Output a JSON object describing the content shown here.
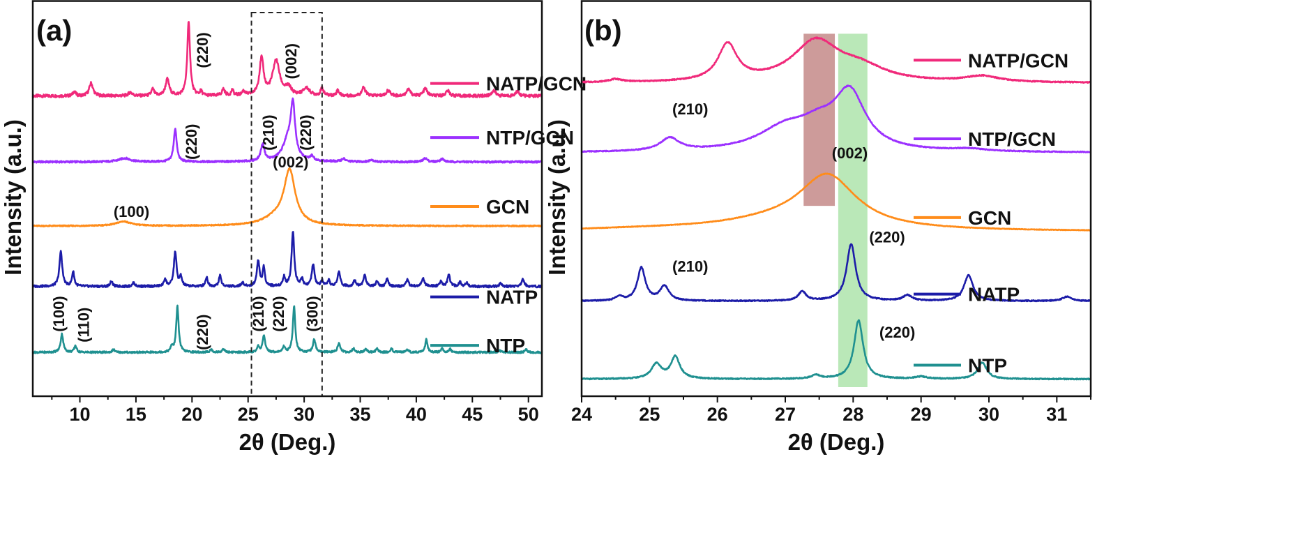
{
  "figure": {
    "background": "#ffffff",
    "axis_color": "#111111"
  },
  "chart_data": [
    {
      "panel": "(a)",
      "type": "line",
      "title": "",
      "xlabel": "2θ (Deg.)",
      "ylabel": "Intensity (a.u.)",
      "xlim": [
        5.8,
        51.2
      ],
      "xticks": [
        10,
        15,
        20,
        25,
        30,
        35,
        40,
        45,
        50
      ],
      "ylim": [
        0,
        1
      ],
      "yticks": [],
      "grid": false,
      "legend": "right, beside each trace",
      "highlight_box": {
        "style": "dashed",
        "x_range": [
          25.3,
          31.6
        ]
      },
      "series": [
        {
          "name": "NATP/GCN",
          "color": "#f0297a",
          "baseline": 0.795,
          "noise": 0.004,
          "peaks": [
            [
              9.5,
              0.012,
              0.15
            ],
            [
              11.0,
              0.035,
              0.2
            ],
            [
              14.5,
              0.01,
              0.2
            ],
            [
              16.5,
              0.018,
              0.15
            ],
            [
              17.8,
              0.045,
              0.2
            ],
            [
              19.7,
              0.2,
              0.15
            ],
            [
              20.8,
              0.012,
              0.12
            ],
            [
              22.8,
              0.018,
              0.15
            ],
            [
              23.6,
              0.015,
              0.12
            ],
            [
              24.6,
              0.012,
              0.15
            ],
            [
              26.2,
              0.1,
              0.22
            ],
            [
              27.5,
              0.095,
              0.38
            ],
            [
              28.6,
              0.02,
              0.3
            ],
            [
              30.2,
              0.02,
              0.35
            ],
            [
              31.6,
              0.02,
              0.15
            ],
            [
              33.0,
              0.015,
              0.15
            ],
            [
              35.3,
              0.022,
              0.2
            ],
            [
              37.5,
              0.015,
              0.2
            ],
            [
              39.3,
              0.018,
              0.2
            ],
            [
              40.8,
              0.02,
              0.2
            ],
            [
              42.8,
              0.014,
              0.2
            ],
            [
              46.9,
              0.015,
              0.2
            ],
            [
              49.0,
              0.012,
              0.2
            ]
          ]
        },
        {
          "name": "NTP/GCN",
          "color": "#9b30ff",
          "baseline": 0.615,
          "noise": 0.0025,
          "peaks": [
            [
              14.0,
              0.01,
              0.6
            ],
            [
              18.5,
              0.09,
              0.16
            ],
            [
              26.3,
              0.045,
              0.2
            ],
            [
              28.6,
              0.06,
              0.6
            ],
            [
              29.0,
              0.13,
              0.22
            ],
            [
              30.7,
              0.012,
              0.2
            ],
            [
              33.5,
              0.008,
              0.2
            ],
            [
              36.0,
              0.006,
              0.2
            ],
            [
              40.8,
              0.01,
              0.2
            ],
            [
              42.3,
              0.008,
              0.2
            ]
          ]
        },
        {
          "name": "GCN",
          "color": "#ff8c1a",
          "baseline": 0.44,
          "noise": 0.0015,
          "peaks": [
            [
              13.9,
              0.012,
              0.8
            ],
            [
              28.7,
              0.145,
              0.6
            ],
            [
              27.5,
              0.02,
              1.4
            ]
          ]
        },
        {
          "name": "NATP",
          "color": "#1c1ca8",
          "baseline": 0.275,
          "noise": 0.003,
          "peaks": [
            [
              8.3,
              0.095,
              0.15
            ],
            [
              9.4,
              0.04,
              0.12
            ],
            [
              12.8,
              0.015,
              0.12
            ],
            [
              14.8,
              0.01,
              0.12
            ],
            [
              17.6,
              0.02,
              0.12
            ],
            [
              18.5,
              0.095,
              0.14
            ],
            [
              19.0,
              0.025,
              0.12
            ],
            [
              21.3,
              0.025,
              0.12
            ],
            [
              22.5,
              0.03,
              0.12
            ],
            [
              24.5,
              0.01,
              0.12
            ],
            [
              25.9,
              0.07,
              0.14
            ],
            [
              26.4,
              0.05,
              0.12
            ],
            [
              28.2,
              0.025,
              0.12
            ],
            [
              29.0,
              0.15,
              0.14
            ],
            [
              29.8,
              0.02,
              0.12
            ],
            [
              30.8,
              0.06,
              0.14
            ],
            [
              31.6,
              0.015,
              0.12
            ],
            [
              32.2,
              0.015,
              0.12
            ],
            [
              33.1,
              0.04,
              0.14
            ],
            [
              34.5,
              0.018,
              0.12
            ],
            [
              35.4,
              0.03,
              0.14
            ],
            [
              36.5,
              0.015,
              0.12
            ],
            [
              37.4,
              0.02,
              0.12
            ],
            [
              39.2,
              0.02,
              0.12
            ],
            [
              40.6,
              0.022,
              0.14
            ],
            [
              42.2,
              0.015,
              0.12
            ],
            [
              42.9,
              0.03,
              0.14
            ],
            [
              43.9,
              0.012,
              0.12
            ],
            [
              44.5,
              0.01,
              0.12
            ],
            [
              47.5,
              0.008,
              0.12
            ],
            [
              49.5,
              0.02,
              0.14
            ]
          ]
        },
        {
          "name": "NTP",
          "color": "#1f9090",
          "baseline": 0.095,
          "noise": 0.0025,
          "peaks": [
            [
              8.4,
              0.05,
              0.14
            ],
            [
              9.6,
              0.018,
              0.12
            ],
            [
              13.0,
              0.008,
              0.12
            ],
            [
              18.2,
              0.015,
              0.12
            ],
            [
              18.7,
              0.125,
              0.13
            ],
            [
              21.7,
              0.008,
              0.12
            ],
            [
              22.8,
              0.01,
              0.12
            ],
            [
              25.9,
              0.015,
              0.12
            ],
            [
              26.4,
              0.045,
              0.14
            ],
            [
              28.2,
              0.015,
              0.12
            ],
            [
              29.1,
              0.125,
              0.13
            ],
            [
              30.9,
              0.035,
              0.14
            ],
            [
              33.1,
              0.025,
              0.14
            ],
            [
              34.4,
              0.01,
              0.12
            ],
            [
              35.5,
              0.01,
              0.12
            ],
            [
              36.5,
              0.01,
              0.12
            ],
            [
              37.8,
              0.01,
              0.12
            ],
            [
              39.2,
              0.008,
              0.12
            ],
            [
              40.9,
              0.035,
              0.12
            ],
            [
              42.3,
              0.01,
              0.12
            ],
            [
              43.0,
              0.01,
              0.12
            ],
            [
              47.4,
              0.006,
              0.12
            ],
            [
              49.8,
              0.008,
              0.12
            ]
          ]
        }
      ],
      "annotations": [
        {
          "text": "(220)",
          "x": 21.4,
          "y": 0.92,
          "rotate": true
        },
        {
          "text": "(002)",
          "x": 29.3,
          "y": 0.89,
          "rotate": true
        },
        {
          "text": "(220)",
          "x": 20.4,
          "y": 0.67,
          "rotate": true
        },
        {
          "text": "(210)",
          "x": 27.3,
          "y": 0.695,
          "rotate": true
        },
        {
          "text": "(220)",
          "x": 30.6,
          "y": 0.695,
          "rotate": true
        },
        {
          "text": "(002)",
          "x": 28.8,
          "y": 0.6,
          "rotate": false
        },
        {
          "text": "(100)",
          "x": 14.6,
          "y": 0.465,
          "rotate": false
        },
        {
          "text": "(100)",
          "x": 8.6,
          "y": 0.2,
          "rotate": true
        },
        {
          "text": "(110)",
          "x": 10.8,
          "y": 0.17,
          "rotate": true
        },
        {
          "text": "(220)",
          "x": 21.4,
          "y": 0.15,
          "rotate": true
        },
        {
          "text": "(210)",
          "x": 26.4,
          "y": 0.2,
          "rotate": true
        },
        {
          "text": "(220)",
          "x": 28.2,
          "y": 0.2,
          "rotate": true
        },
        {
          "text": "(300)",
          "x": 31.2,
          "y": 0.2,
          "rotate": true
        }
      ]
    },
    {
      "panel": "(b)",
      "type": "line",
      "title": "",
      "xlabel": "2θ (Deg.)",
      "ylabel": "Intensity (a.u.)",
      "xlim": [
        24,
        31.5
      ],
      "xticks": [
        24,
        25,
        26,
        27,
        28,
        29,
        30,
        31
      ],
      "ylim": [
        0,
        1
      ],
      "yticks": [],
      "grid": false,
      "legend": "right, beside each trace",
      "bands": [
        {
          "x_range": [
            27.27,
            27.73
          ],
          "y_range": [
            0.495,
            0.965
          ],
          "color": "#c8908f"
        },
        {
          "x_range": [
            27.78,
            28.21
          ],
          "y_range": [
            0.0,
            0.965
          ],
          "color": "#b2e5b0"
        }
      ],
      "series": [
        {
          "name": "NATP/GCN",
          "color": "#f0297a",
          "baseline": 0.83,
          "noise": 0.0015,
          "peaks": [
            [
              24.5,
              0.008,
              0.12
            ],
            [
              26.15,
              0.1,
              0.17
            ],
            [
              27.45,
              0.11,
              0.42
            ],
            [
              28.1,
              0.035,
              0.45
            ],
            [
              29.9,
              0.016,
              0.3
            ]
          ]
        },
        {
          "name": "NTP/GCN",
          "color": "#9b30ff",
          "baseline": 0.64,
          "noise": 0.0012,
          "peaks": [
            [
              25.3,
              0.035,
              0.17
            ],
            [
              27.0,
              0.06,
              0.5
            ],
            [
              27.95,
              0.15,
              0.28
            ],
            [
              27.5,
              0.05,
              0.35
            ],
            [
              29.7,
              0.006,
              0.3
            ]
          ]
        },
        {
          "name": "GCN",
          "color": "#ff8c1a",
          "baseline": 0.425,
          "noise": 0.0008,
          "peaks": [
            [
              27.62,
              0.145,
              0.52
            ],
            [
              26.8,
              0.02,
              1.0
            ],
            [
              25.0,
              0.005,
              1.2
            ]
          ]
        },
        {
          "name": "NATP",
          "color": "#1c1ca8",
          "baseline": 0.235,
          "noise": 0.0015,
          "peaks": [
            [
              24.55,
              0.012,
              0.06
            ],
            [
              24.88,
              0.09,
              0.07
            ],
            [
              25.22,
              0.04,
              0.08
            ],
            [
              27.25,
              0.025,
              0.07
            ],
            [
              27.97,
              0.155,
              0.08
            ],
            [
              28.8,
              0.015,
              0.08
            ],
            [
              29.7,
              0.07,
              0.08
            ],
            [
              31.15,
              0.012,
              0.08
            ]
          ]
        },
        {
          "name": "NTP",
          "color": "#1f9090",
          "baseline": 0.022,
          "noise": 0.0015,
          "peaks": [
            [
              25.1,
              0.04,
              0.09
            ],
            [
              25.38,
              0.06,
              0.08
            ],
            [
              27.45,
              0.01,
              0.08
            ],
            [
              28.08,
              0.16,
              0.08
            ],
            [
              29.0,
              0.006,
              0.1
            ],
            [
              29.9,
              0.045,
              0.08
            ]
          ]
        }
      ],
      "annotations": [
        {
          "text": "(210)",
          "x": 25.6,
          "y": 0.745,
          "rotate": false
        },
        {
          "text": "(002)",
          "x": 27.95,
          "y": 0.625,
          "rotate": false
        },
        {
          "text": "(220)",
          "x": 28.5,
          "y": 0.395,
          "rotate": false
        },
        {
          "text": "(210)",
          "x": 25.6,
          "y": 0.315,
          "rotate": false
        },
        {
          "text": "(220)",
          "x": 28.65,
          "y": 0.135,
          "rotate": false
        }
      ]
    }
  ]
}
